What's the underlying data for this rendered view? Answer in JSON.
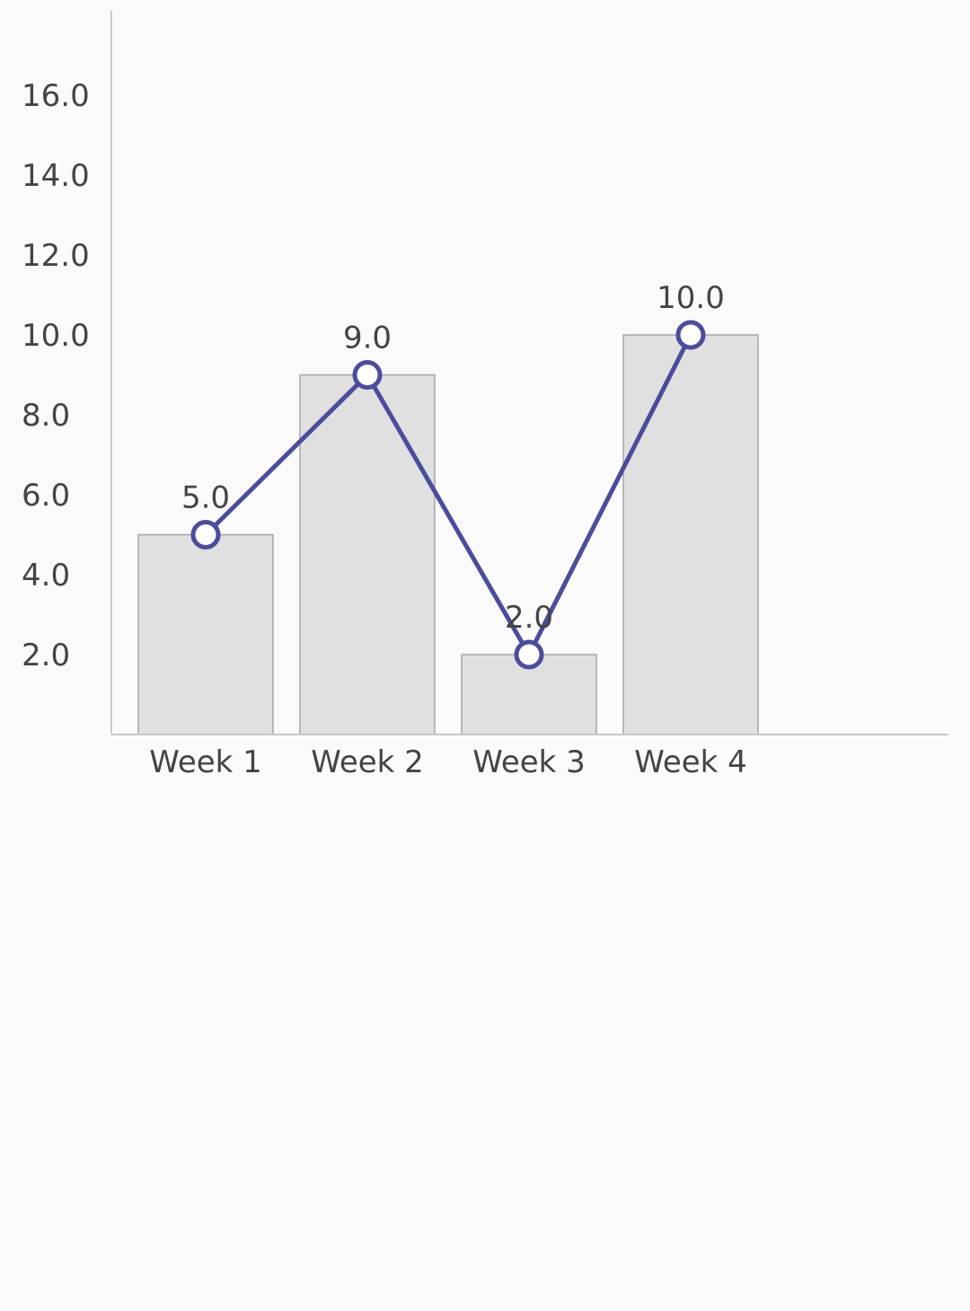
{
  "colors": {
    "background": "#fafafa",
    "axis": "#c8c8c8",
    "bar_fill": "#e0e0e0",
    "bar_stroke": "#a6a6a6",
    "line": "#4c4c9c",
    "marker_fill": "#ffffff",
    "text": "#444444"
  },
  "chart_data": {
    "type": "bar",
    "categories": [
      "Week 1",
      "Week 2",
      "Week 3",
      "Week 4"
    ],
    "series": [
      {
        "kind": "bar",
        "values": [
          5.0,
          9.0,
          2.0,
          10.0
        ]
      },
      {
        "kind": "line",
        "values": [
          5.0,
          9.0,
          2.0,
          10.0
        ]
      }
    ],
    "data_labels": [
      "5.0",
      "9.0",
      "2.0",
      "10.0"
    ],
    "y_ticks": [
      2.0,
      4.0,
      6.0,
      8.0,
      10.0,
      12.0,
      14.0,
      16.0
    ],
    "y_tick_labels": [
      "2.0",
      "4.0",
      "6.0",
      "8.0",
      "10.0",
      "12.0",
      "14.0",
      "16.0"
    ],
    "ylim": [
      0,
      18
    ],
    "grid": false,
    "legend": "none"
  }
}
